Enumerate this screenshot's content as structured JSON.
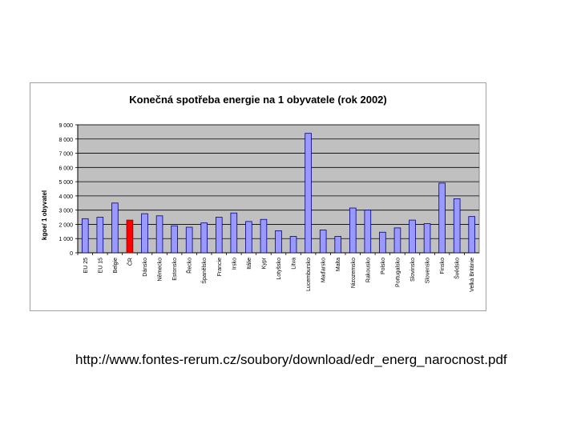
{
  "slide": {
    "source_url": "http://www.fontes-rerum.cz/soubory/download/edr_energ_narocnost.pdf"
  },
  "chart_data": {
    "type": "bar",
    "title": "Konečná spotřeba energie na 1 obyvatele (rok 2002)",
    "xlabel": "",
    "ylabel": "kgoe/ 1 obyvatel",
    "ylim": [
      0,
      9000
    ],
    "yticks": [
      "0",
      "1 000",
      "2 000",
      "3 000",
      "4 000",
      "5 000",
      "6 000",
      "7 000",
      "8 000",
      "9 000"
    ],
    "grid": true,
    "legend": "none",
    "colors": {
      "bar": "#9999ff",
      "highlight": "#ff0000",
      "plot_bg": "#c0c0c0",
      "bar_edge": "#000080"
    },
    "highlight_category": "ČR",
    "categories": [
      "EU 25",
      "EU 15",
      "Belgie",
      "ČR",
      "Dánsko",
      "Německo",
      "Estonsko",
      "Řecko",
      "Španělsko",
      "Francie",
      "Irsko",
      "Itálie",
      "Kypr",
      "Lotyšsko",
      "Litva",
      "Lucembursko",
      "Maďarsko",
      "Malta",
      "Nizozemsko",
      "Rakousko",
      "Polsko",
      "Portugalsko",
      "Slovinsko",
      "Slovensko",
      "Finsko",
      "Švédsko",
      "Velká Británie"
    ],
    "values": [
      2400,
      2500,
      3500,
      2300,
      2750,
      2600,
      1900,
      1800,
      2100,
      2500,
      2800,
      2200,
      2350,
      1550,
      1150,
      8400,
      1600,
      1150,
      3150,
      3000,
      1450,
      1750,
      2300,
      2050,
      4900,
      3800,
      2550
    ]
  }
}
